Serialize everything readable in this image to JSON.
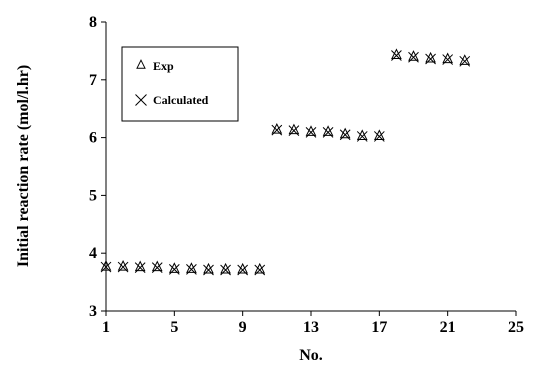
{
  "chart_data": {
    "type": "scatter",
    "title": "",
    "xlabel": "No.",
    "ylabel": "Initial reaction rate (mol/l.hr)",
    "xlim": [
      1,
      25
    ],
    "ylim": [
      3,
      8
    ],
    "xticks": [
      "1",
      "5",
      "9",
      "13",
      "17",
      "21",
      "25"
    ],
    "yticks": [
      "3",
      "4",
      "5",
      "6",
      "7",
      "8"
    ],
    "grid": false,
    "legend": "top-left",
    "series": [
      {
        "name": "Exp",
        "marker": "triangle",
        "x": [
          1,
          2,
          3,
          4,
          5,
          6,
          7,
          8,
          9,
          10,
          11,
          12,
          13,
          14,
          15,
          16,
          17,
          18,
          19,
          20,
          21,
          22
        ],
        "y": [
          3.77,
          3.77,
          3.76,
          3.76,
          3.73,
          3.73,
          3.72,
          3.72,
          3.72,
          3.72,
          6.14,
          6.13,
          6.1,
          6.1,
          6.06,
          6.03,
          6.03,
          7.43,
          7.4,
          7.37,
          7.36,
          7.33
        ]
      },
      {
        "name": "Calculated",
        "marker": "x",
        "x": [
          1,
          2,
          3,
          4,
          5,
          6,
          7,
          8,
          9,
          10,
          11,
          12,
          13,
          14,
          15,
          16,
          17,
          18,
          19,
          20,
          21,
          22
        ],
        "y": [
          3.76,
          3.76,
          3.75,
          3.75,
          3.72,
          3.72,
          3.71,
          3.71,
          3.71,
          3.71,
          6.13,
          6.12,
          6.09,
          6.09,
          6.05,
          6.02,
          6.02,
          7.42,
          7.39,
          7.36,
          7.35,
          7.32
        ]
      }
    ]
  }
}
